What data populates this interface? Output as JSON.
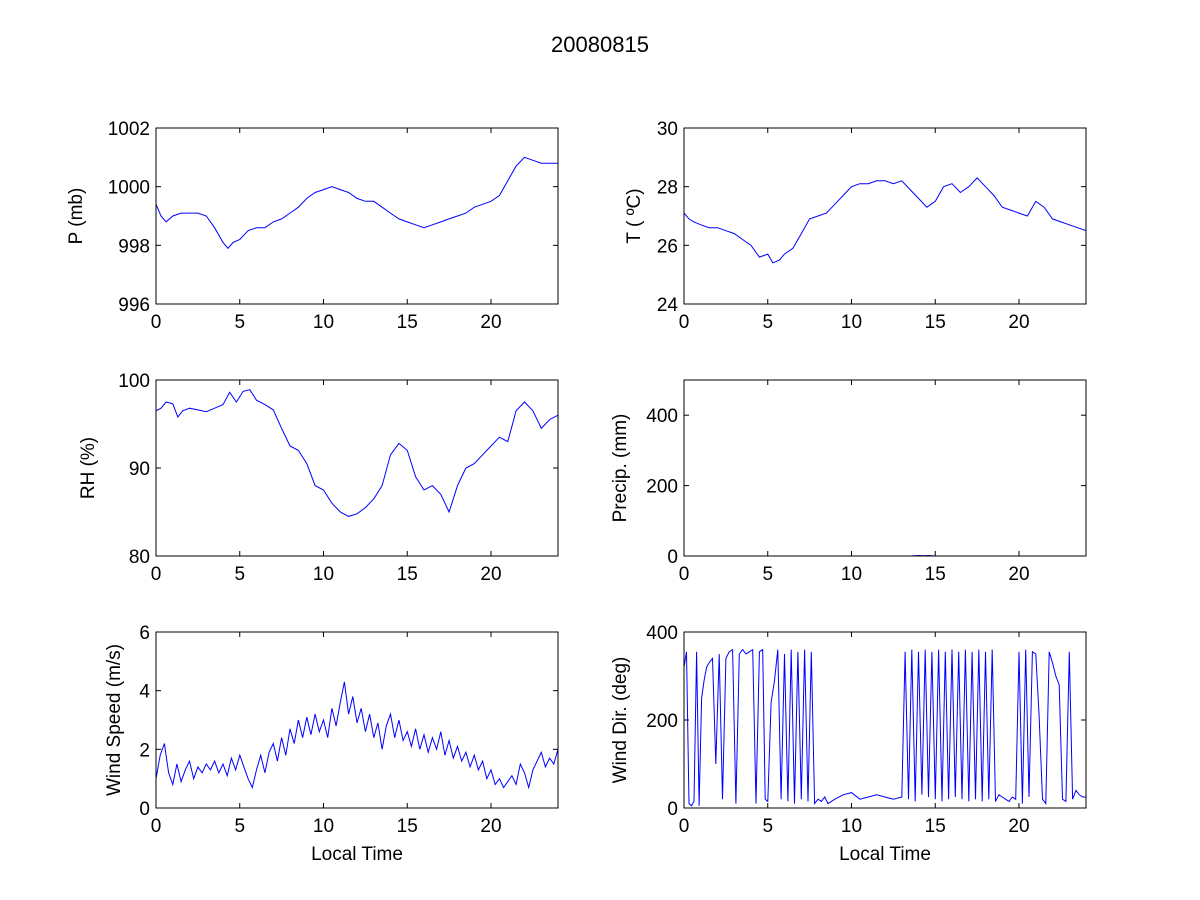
{
  "title": "20080815",
  "line_color": "#0000ff",
  "chart_data": [
    {
      "type": "line",
      "ylabel": "P (mb)",
      "xlabel": "",
      "xlim": [
        0,
        24
      ],
      "ylim": [
        996,
        1002
      ],
      "xticks": [
        "0",
        "5",
        "10",
        "15",
        "20"
      ],
      "yticks": [
        "996",
        "998",
        "1000",
        "1002"
      ],
      "series": [
        {
          "x": [
            0,
            0.3,
            0.6,
            1.0,
            1.5,
            2.0,
            2.5,
            3.0,
            3.5,
            4.0,
            4.3,
            4.6,
            5.0,
            5.5,
            6.0,
            6.5,
            7.0,
            7.5,
            8.0,
            8.5,
            9.0,
            9.5,
            10.0,
            10.5,
            11.0,
            11.5,
            12.0,
            12.5,
            13.0,
            13.5,
            14.0,
            14.5,
            15.0,
            15.5,
            16.0,
            16.5,
            17.0,
            17.5,
            18.0,
            18.5,
            19.0,
            19.5,
            20.0,
            20.5,
            21.0,
            21.5,
            22.0,
            22.5,
            23.0,
            23.5,
            24.0
          ],
          "y": [
            999.4,
            999.0,
            998.8,
            999.0,
            999.1,
            999.1,
            999.1,
            999.0,
            998.6,
            998.1,
            997.9,
            998.1,
            998.2,
            998.5,
            998.6,
            998.6,
            998.8,
            998.9,
            999.1,
            999.3,
            999.6,
            999.8,
            999.9,
            1000.0,
            999.9,
            999.8,
            999.6,
            999.5,
            999.5,
            999.3,
            999.1,
            998.9,
            998.8,
            998.7,
            998.6,
            998.7,
            998.8,
            998.9,
            999.0,
            999.1,
            999.3,
            999.4,
            999.5,
            999.7,
            1000.2,
            1000.7,
            1001.0,
            1000.9,
            1000.8,
            1000.8,
            1000.8
          ]
        }
      ]
    },
    {
      "type": "line",
      "ylabel": "T ( ºC)",
      "xlabel": "",
      "xlim": [
        0,
        24
      ],
      "ylim": [
        24,
        30
      ],
      "xticks": [
        "0",
        "5",
        "10",
        "15",
        "20"
      ],
      "yticks": [
        "24",
        "26",
        "28",
        "30"
      ],
      "series": [
        {
          "x": [
            0,
            0.3,
            0.6,
            1.0,
            1.5,
            2.0,
            2.5,
            3.0,
            3.5,
            4.0,
            4.5,
            5.0,
            5.3,
            5.7,
            6.0,
            6.5,
            7.0,
            7.5,
            8.0,
            8.5,
            9.0,
            9.5,
            10.0,
            10.5,
            11.0,
            11.5,
            12.0,
            12.5,
            13.0,
            13.5,
            14.0,
            14.5,
            15.0,
            15.5,
            16.0,
            16.5,
            17.0,
            17.5,
            18.0,
            18.5,
            19.0,
            19.5,
            20.0,
            20.5,
            21.0,
            21.5,
            22.0,
            22.5,
            23.0,
            23.5,
            24.0
          ],
          "y": [
            27.1,
            26.9,
            26.8,
            26.7,
            26.6,
            26.6,
            26.5,
            26.4,
            26.2,
            26.0,
            25.6,
            25.7,
            25.4,
            25.5,
            25.7,
            25.9,
            26.4,
            26.9,
            27.0,
            27.1,
            27.4,
            27.7,
            28.0,
            28.1,
            28.1,
            28.2,
            28.2,
            28.1,
            28.2,
            27.9,
            27.6,
            27.3,
            27.5,
            28.0,
            28.1,
            27.8,
            28.0,
            28.3,
            28.0,
            27.7,
            27.3,
            27.2,
            27.1,
            27.0,
            27.5,
            27.3,
            26.9,
            26.8,
            26.7,
            26.6,
            26.5
          ]
        }
      ]
    },
    {
      "type": "line",
      "ylabel": "RH (%)",
      "xlabel": "",
      "xlim": [
        0,
        24
      ],
      "ylim": [
        80,
        100
      ],
      "xticks": [
        "0",
        "5",
        "10",
        "15",
        "20"
      ],
      "yticks": [
        "80",
        "90",
        "100"
      ],
      "series": [
        {
          "x": [
            0,
            0.3,
            0.6,
            1.0,
            1.3,
            1.6,
            2.0,
            2.5,
            3.0,
            3.5,
            4.0,
            4.4,
            4.8,
            5.2,
            5.6,
            6.0,
            6.5,
            7.0,
            7.5,
            8.0,
            8.5,
            9.0,
            9.5,
            10.0,
            10.5,
            11.0,
            11.5,
            12.0,
            12.5,
            13.0,
            13.5,
            14.0,
            14.5,
            15.0,
            15.5,
            16.0,
            16.5,
            17.0,
            17.5,
            18.0,
            18.5,
            19.0,
            19.5,
            20.0,
            20.5,
            21.0,
            21.5,
            22.0,
            22.5,
            23.0,
            23.5,
            24.0
          ],
          "y": [
            96.5,
            96.8,
            97.5,
            97.3,
            95.8,
            96.5,
            96.8,
            96.6,
            96.4,
            96.8,
            97.2,
            98.6,
            97.5,
            98.7,
            98.9,
            97.7,
            97.2,
            96.6,
            94.5,
            92.5,
            92.0,
            90.5,
            88.0,
            87.5,
            86.0,
            85.0,
            84.5,
            84.8,
            85.5,
            86.5,
            88.0,
            91.5,
            92.8,
            92.0,
            89.0,
            87.5,
            88.0,
            87.0,
            85.0,
            88.0,
            90.0,
            90.5,
            91.5,
            92.5,
            93.5,
            93.0,
            96.5,
            97.5,
            96.5,
            94.5,
            95.5,
            96.0
          ]
        }
      ]
    },
    {
      "type": "line",
      "ylabel": "Precip. (mm)",
      "xlabel": "",
      "xlim": [
        0,
        24
      ],
      "ylim": [
        0,
        500
      ],
      "xticks": [
        "0",
        "5",
        "10",
        "15",
        "20"
      ],
      "yticks": [
        "0",
        "200",
        "400"
      ],
      "series": [
        {
          "x": [
            0,
            5,
            10,
            13.5,
            14.0,
            14.3,
            14.6,
            15.0,
            20,
            24
          ],
          "y": [
            0,
            0,
            0,
            0,
            1.5,
            0.5,
            1.5,
            0,
            0,
            0
          ]
        }
      ]
    },
    {
      "type": "line",
      "ylabel": "Wind Speed (m/s)",
      "xlabel": "Local Time",
      "xlim": [
        0,
        24
      ],
      "ylim": [
        0,
        6
      ],
      "xticks": [
        "0",
        "5",
        "10",
        "15",
        "20"
      ],
      "yticks": [
        "0",
        "2",
        "4",
        "6"
      ],
      "series": [
        {
          "x": [
            0,
            0.25,
            0.5,
            0.75,
            1.0,
            1.25,
            1.5,
            1.75,
            2.0,
            2.25,
            2.5,
            2.75,
            3.0,
            3.25,
            3.5,
            3.75,
            4.0,
            4.25,
            4.5,
            4.75,
            5.0,
            5.25,
            5.5,
            5.75,
            6.0,
            6.25,
            6.5,
            6.75,
            7.0,
            7.25,
            7.5,
            7.75,
            8.0,
            8.25,
            8.5,
            8.75,
            9.0,
            9.25,
            9.5,
            9.75,
            10.0,
            10.25,
            10.5,
            10.75,
            11.0,
            11.25,
            11.5,
            11.75,
            12.0,
            12.25,
            12.5,
            12.75,
            13.0,
            13.25,
            13.5,
            13.75,
            14.0,
            14.25,
            14.5,
            14.75,
            15.0,
            15.25,
            15.5,
            15.75,
            16.0,
            16.25,
            16.5,
            16.75,
            17.0,
            17.25,
            17.5,
            17.75,
            18.0,
            18.25,
            18.5,
            18.75,
            19.0,
            19.25,
            19.5,
            19.75,
            20.0,
            20.25,
            20.5,
            20.75,
            21.0,
            21.25,
            21.5,
            21.75,
            22.0,
            22.25,
            22.5,
            22.75,
            23.0,
            23.25,
            23.5,
            23.75,
            24.0
          ],
          "y": [
            1.0,
            1.8,
            2.2,
            1.2,
            0.8,
            1.5,
            0.9,
            1.3,
            1.6,
            1.0,
            1.4,
            1.2,
            1.5,
            1.3,
            1.6,
            1.2,
            1.5,
            1.1,
            1.7,
            1.3,
            1.8,
            1.4,
            1.0,
            0.7,
            1.3,
            1.8,
            1.2,
            1.9,
            2.2,
            1.6,
            2.4,
            1.8,
            2.7,
            2.2,
            3.0,
            2.4,
            3.1,
            2.5,
            3.2,
            2.6,
            3.0,
            2.4,
            3.4,
            2.8,
            3.6,
            4.3,
            3.2,
            3.8,
            2.9,
            3.4,
            2.6,
            3.2,
            2.4,
            2.9,
            2.0,
            2.8,
            3.2,
            2.4,
            3.0,
            2.3,
            2.6,
            2.1,
            2.7,
            2.0,
            2.5,
            1.9,
            2.4,
            2.0,
            2.6,
            1.8,
            2.3,
            1.7,
            2.1,
            1.6,
            1.9,
            1.4,
            1.8,
            1.3,
            1.6,
            1.0,
            1.3,
            0.8,
            1.0,
            0.7,
            0.9,
            1.1,
            0.8,
            1.5,
            1.2,
            0.7,
            1.3,
            1.6,
            1.9,
            1.4,
            1.7,
            1.5,
            2.0
          ]
        }
      ]
    },
    {
      "type": "line",
      "ylabel": "Wind Dir. (deg)",
      "xlabel": "Local Time",
      "xlim": [
        0,
        24
      ],
      "ylim": [
        0,
        400
      ],
      "xticks": [
        "0",
        "5",
        "10",
        "15",
        "20"
      ],
      "yticks": [
        "0",
        "200",
        "400"
      ],
      "series": [
        {
          "x": [
            0,
            0.15,
            0.3,
            0.45,
            0.6,
            0.75,
            0.9,
            1.05,
            1.2,
            1.35,
            1.5,
            1.7,
            1.9,
            2.1,
            2.3,
            2.5,
            2.7,
            2.9,
            3.1,
            3.3,
            3.5,
            3.7,
            3.9,
            4.1,
            4.3,
            4.5,
            4.7,
            4.85,
            5.0,
            5.2,
            5.4,
            5.6,
            5.8,
            6.0,
            6.2,
            6.4,
            6.6,
            6.8,
            7.0,
            7.2,
            7.4,
            7.6,
            7.8,
            8.0,
            8.2,
            8.4,
            8.6,
            8.8,
            9.0,
            9.5,
            10.0,
            10.5,
            11.0,
            11.5,
            12.0,
            12.5,
            13.0,
            13.2,
            13.4,
            13.6,
            13.8,
            14.0,
            14.2,
            14.4,
            14.6,
            14.8,
            15.0,
            15.2,
            15.4,
            15.6,
            15.8,
            16.0,
            16.2,
            16.4,
            16.6,
            16.8,
            17.0,
            17.2,
            17.4,
            17.6,
            17.8,
            18.0,
            18.2,
            18.4,
            18.6,
            18.8,
            19.0,
            19.2,
            19.4,
            19.6,
            19.8,
            20.0,
            20.2,
            20.4,
            20.6,
            20.8,
            21.0,
            21.2,
            21.4,
            21.6,
            21.8,
            22.0,
            22.2,
            22.4,
            22.6,
            22.8,
            23.0,
            23.2,
            23.4,
            23.6,
            23.8,
            24.0
          ],
          "y": [
            320,
            355,
            10,
            5,
            15,
            355,
            5,
            250,
            290,
            320,
            330,
            340,
            100,
            350,
            20,
            340,
            355,
            360,
            10,
            350,
            360,
            350,
            355,
            360,
            10,
            355,
            360,
            20,
            15,
            240,
            290,
            360,
            20,
            350,
            15,
            360,
            10,
            355,
            20,
            360,
            15,
            355,
            10,
            20,
            15,
            25,
            10,
            15,
            20,
            30,
            35,
            20,
            25,
            30,
            25,
            20,
            25,
            355,
            20,
            360,
            15,
            355,
            30,
            360,
            25,
            355,
            20,
            360,
            15,
            355,
            20,
            360,
            25,
            355,
            20,
            360,
            15,
            355,
            20,
            360,
            15,
            355,
            20,
            360,
            15,
            30,
            25,
            20,
            15,
            25,
            20,
            355,
            10,
            360,
            25,
            355,
            350,
            210,
            20,
            10,
            355,
            330,
            300,
            280,
            20,
            15,
            355,
            20,
            40,
            30,
            25,
            25
          ]
        }
      ]
    }
  ]
}
